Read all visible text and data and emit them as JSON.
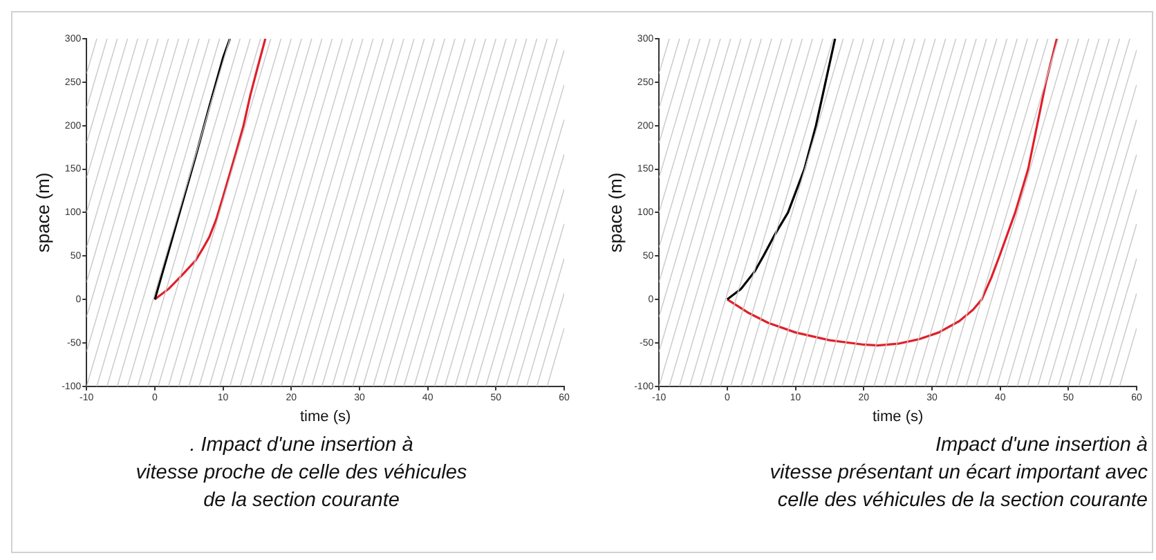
{
  "chart_data": [
    {
      "type": "line",
      "xlabel": "time (s)",
      "ylabel": "space (m)",
      "xlim": [
        -10,
        60
      ],
      "xticks": [
        -10,
        0,
        10,
        20,
        30,
        40,
        50,
        60
      ],
      "ylim": [
        -100,
        300
      ],
      "yticks": [
        -100,
        -50,
        0,
        50,
        100,
        150,
        200,
        250,
        300
      ],
      "grid": false,
      "legend": false,
      "annotations": [
        ". Impact d'une insertion à\nvitesse proche de celle des véhicules\nde la section courante"
      ],
      "series": [
        {
          "color": "#c8c8c8",
          "x": [
            -10,
            -8.5
          ],
          "values": [
            260,
            300
          ]
        },
        {
          "color": "#c8c8c8",
          "x": [
            -10,
            -7
          ],
          "values": [
            220,
            300
          ]
        },
        {
          "color": "#c8c8c8",
          "x": [
            -10,
            -5.5
          ],
          "values": [
            180,
            300
          ]
        },
        {
          "color": "#c8c8c8",
          "x": [
            -10,
            -4
          ],
          "values": [
            140,
            300
          ]
        },
        {
          "color": "#c8c8c8",
          "x": [
            -10,
            -2.5
          ],
          "values": [
            100,
            300
          ]
        },
        {
          "color": "#c8c8c8",
          "x": [
            -10,
            -1
          ],
          "values": [
            60,
            300
          ]
        },
        {
          "color": "#c8c8c8",
          "x": [
            -10,
            0.5
          ],
          "values": [
            20,
            300
          ]
        },
        {
          "color": "#c8c8c8",
          "x": [
            -10,
            2
          ],
          "values": [
            -20,
            300
          ]
        },
        {
          "color": "#c8c8c8",
          "x": [
            -10,
            3.5
          ],
          "values": [
            -60,
            300
          ]
        },
        {
          "color": "#c8c8c8",
          "x": [
            -10,
            5
          ],
          "values": [
            -100,
            300
          ]
        },
        {
          "color": "#c8c8c8",
          "x": [
            -8.5,
            6.5
          ],
          "values": [
            -100,
            300
          ]
        },
        {
          "color": "#c8c8c8",
          "x": [
            -7,
            8
          ],
          "values": [
            -100,
            300
          ]
        },
        {
          "color": "#c8c8c8",
          "x": [
            -5.5,
            9.5
          ],
          "values": [
            -100,
            300
          ]
        },
        {
          "color": "#c8c8c8",
          "x": [
            -4,
            11
          ],
          "values": [
            -100,
            300
          ]
        },
        {
          "color": "#c8c8c8",
          "x": [
            -2.5,
            12.5
          ],
          "values": [
            -100,
            300
          ]
        },
        {
          "color": "#c8c8c8",
          "x": [
            -1,
            14
          ],
          "values": [
            -100,
            300
          ]
        },
        {
          "color": "#c8c8c8",
          "x": [
            0.5,
            15.5
          ],
          "values": [
            -100,
            300
          ]
        },
        {
          "color": "#c8c8c8",
          "x": [
            2,
            17
          ],
          "values": [
            -100,
            300
          ]
        },
        {
          "color": "#c8c8c8",
          "x": [
            3.5,
            18.5
          ],
          "values": [
            -100,
            300
          ]
        },
        {
          "color": "#c8c8c8",
          "x": [
            5,
            20
          ],
          "values": [
            -100,
            300
          ]
        },
        {
          "color": "#c8c8c8",
          "x": [
            6.5,
            21.5
          ],
          "values": [
            -100,
            300
          ]
        },
        {
          "color": "#c8c8c8",
          "x": [
            8,
            23
          ],
          "values": [
            -100,
            300
          ]
        },
        {
          "color": "#c8c8c8",
          "x": [
            9.5,
            24.5
          ],
          "values": [
            -100,
            300
          ]
        },
        {
          "color": "#c8c8c8",
          "x": [
            11,
            26
          ],
          "values": [
            -100,
            300
          ]
        },
        {
          "color": "#c8c8c8",
          "x": [
            12.5,
            27.5
          ],
          "values": [
            -100,
            300
          ]
        },
        {
          "color": "#c8c8c8",
          "x": [
            14,
            29
          ],
          "values": [
            -100,
            300
          ]
        },
        {
          "color": "#c8c8c8",
          "x": [
            15.5,
            30.5
          ],
          "values": [
            -100,
            300
          ]
        },
        {
          "color": "#c8c8c8",
          "x": [
            17,
            32
          ],
          "values": [
            -100,
            300
          ]
        },
        {
          "color": "#c8c8c8",
          "x": [
            18.5,
            33.5
          ],
          "values": [
            -100,
            300
          ]
        },
        {
          "color": "#c8c8c8",
          "x": [
            20,
            35
          ],
          "values": [
            -100,
            300
          ]
        },
        {
          "color": "#c8c8c8",
          "x": [
            21.5,
            36.5
          ],
          "values": [
            -100,
            300
          ]
        },
        {
          "color": "#c8c8c8",
          "x": [
            23,
            38
          ],
          "values": [
            -100,
            300
          ]
        },
        {
          "color": "#c8c8c8",
          "x": [
            24.5,
            39.5
          ],
          "values": [
            -100,
            300
          ]
        },
        {
          "color": "#c8c8c8",
          "x": [
            26,
            41
          ],
          "values": [
            -100,
            300
          ]
        },
        {
          "color": "#c8c8c8",
          "x": [
            27.5,
            42.5
          ],
          "values": [
            -100,
            300
          ]
        },
        {
          "color": "#c8c8c8",
          "x": [
            29,
            44
          ],
          "values": [
            -100,
            300
          ]
        },
        {
          "color": "#c8c8c8",
          "x": [
            30.5,
            45.5
          ],
          "values": [
            -100,
            300
          ]
        },
        {
          "color": "#c8c8c8",
          "x": [
            32,
            47
          ],
          "values": [
            -100,
            300
          ]
        },
        {
          "color": "#c8c8c8",
          "x": [
            33.5,
            48.5
          ],
          "values": [
            -100,
            300
          ]
        },
        {
          "color": "#c8c8c8",
          "x": [
            35,
            50
          ],
          "values": [
            -100,
            300
          ]
        },
        {
          "color": "#c8c8c8",
          "x": [
            36.5,
            51.5
          ],
          "values": [
            -100,
            300
          ]
        },
        {
          "color": "#c8c8c8",
          "x": [
            38,
            53
          ],
          "values": [
            -100,
            300
          ]
        },
        {
          "color": "#c8c8c8",
          "x": [
            39.5,
            54.5
          ],
          "values": [
            -100,
            300
          ]
        },
        {
          "color": "#c8c8c8",
          "x": [
            41,
            56
          ],
          "values": [
            -100,
            300
          ]
        },
        {
          "color": "#c8c8c8",
          "x": [
            42.5,
            57.5
          ],
          "values": [
            -100,
            300
          ]
        },
        {
          "color": "#c8c8c8",
          "x": [
            44,
            59
          ],
          "values": [
            -100,
            300
          ]
        },
        {
          "color": "#c8c8c8",
          "x": [
            45.5,
            60
          ],
          "values": [
            -100,
            287
          ]
        },
        {
          "color": "#c8c8c8",
          "x": [
            47,
            60
          ],
          "values": [
            -100,
            247
          ]
        },
        {
          "color": "#c8c8c8",
          "x": [
            48.5,
            60
          ],
          "values": [
            -100,
            207
          ]
        },
        {
          "color": "#c8c8c8",
          "x": [
            50,
            60
          ],
          "values": [
            -100,
            167
          ]
        },
        {
          "color": "#c8c8c8",
          "x": [
            51.5,
            60
          ],
          "values": [
            -100,
            127
          ]
        },
        {
          "color": "#c8c8c8",
          "x": [
            53,
            60
          ],
          "values": [
            -100,
            87
          ]
        },
        {
          "color": "#c8c8c8",
          "x": [
            54.5,
            60
          ],
          "values": [
            -100,
            47
          ]
        },
        {
          "color": "#c8c8c8",
          "x": [
            56,
            60
          ],
          "values": [
            -100,
            7
          ]
        },
        {
          "color": "#c8c8c8",
          "x": [
            57.5,
            60
          ],
          "values": [
            -100,
            -33
          ]
        },
        {
          "color": "#000000",
          "x": [
            0,
            2,
            4,
            6,
            8,
            10,
            11
          ],
          "values": [
            0,
            55,
            110,
            165,
            222,
            278,
            300
          ]
        },
        {
          "color": "#e0202a",
          "x": [
            0,
            2,
            4,
            6,
            7,
            8,
            9,
            10,
            11,
            12,
            13,
            14,
            15,
            16.2
          ],
          "values": [
            0,
            12,
            28,
            45,
            58,
            72,
            92,
            118,
            145,
            172,
            200,
            235,
            265,
            300
          ]
        }
      ]
    },
    {
      "type": "line",
      "xlabel": "time (s)",
      "ylabel": "space (m)",
      "xlim": [
        -10,
        60
      ],
      "xticks": [
        -10,
        0,
        10,
        20,
        30,
        40,
        50,
        60
      ],
      "ylim": [
        -100,
        300
      ],
      "yticks": [
        -100,
        -50,
        0,
        50,
        100,
        150,
        200,
        250,
        300
      ],
      "grid": false,
      "legend": false,
      "annotations": [
        "Impact d'une insertion à\nvitesse présentant un écart important avec\ncelle des véhicules de la section courante"
      ],
      "series": [
        {
          "color": "#c8c8c8",
          "x": [
            -10,
            -8.5
          ],
          "values": [
            260,
            300
          ]
        },
        {
          "color": "#c8c8c8",
          "x": [
            -10,
            -7
          ],
          "values": [
            220,
            300
          ]
        },
        {
          "color": "#c8c8c8",
          "x": [
            -10,
            -5.5
          ],
          "values": [
            180,
            300
          ]
        },
        {
          "color": "#c8c8c8",
          "x": [
            -10,
            -4
          ],
          "values": [
            140,
            300
          ]
        },
        {
          "color": "#c8c8c8",
          "x": [
            -10,
            -2.5
          ],
          "values": [
            100,
            300
          ]
        },
        {
          "color": "#c8c8c8",
          "x": [
            -10,
            -1
          ],
          "values": [
            60,
            300
          ]
        },
        {
          "color": "#c8c8c8",
          "x": [
            -10,
            0.5
          ],
          "values": [
            20,
            300
          ]
        },
        {
          "color": "#c8c8c8",
          "x": [
            -10,
            2
          ],
          "values": [
            -20,
            300
          ]
        },
        {
          "color": "#c8c8c8",
          "x": [
            -10,
            3.5
          ],
          "values": [
            -60,
            300
          ]
        },
        {
          "color": "#c8c8c8",
          "x": [
            -10,
            5
          ],
          "values": [
            -100,
            300
          ]
        },
        {
          "color": "#c8c8c8",
          "x": [
            -8.5,
            6.5
          ],
          "values": [
            -100,
            300
          ]
        },
        {
          "color": "#c8c8c8",
          "x": [
            -7,
            8
          ],
          "values": [
            -100,
            300
          ]
        },
        {
          "color": "#c8c8c8",
          "x": [
            -5.5,
            9.5
          ],
          "values": [
            -100,
            300
          ]
        },
        {
          "color": "#c8c8c8",
          "x": [
            -4,
            11
          ],
          "values": [
            -100,
            300
          ]
        },
        {
          "color": "#c8c8c8",
          "x": [
            -2.5,
            12.5
          ],
          "values": [
            -100,
            300
          ]
        },
        {
          "color": "#c8c8c8",
          "x": [
            -1,
            14
          ],
          "values": [
            -100,
            300
          ]
        },
        {
          "color": "#c8c8c8",
          "x": [
            0.5,
            15.5
          ],
          "values": [
            -100,
            300
          ]
        },
        {
          "color": "#c8c8c8",
          "x": [
            2,
            17
          ],
          "values": [
            -100,
            300
          ]
        },
        {
          "color": "#c8c8c8",
          "x": [
            3.5,
            18.5
          ],
          "values": [
            -100,
            300
          ]
        },
        {
          "color": "#c8c8c8",
          "x": [
            5,
            20
          ],
          "values": [
            -100,
            300
          ]
        },
        {
          "color": "#c8c8c8",
          "x": [
            6.5,
            21.5
          ],
          "values": [
            -100,
            300
          ]
        },
        {
          "color": "#c8c8c8",
          "x": [
            8,
            23
          ],
          "values": [
            -100,
            300
          ]
        },
        {
          "color": "#c8c8c8",
          "x": [
            9.5,
            24.5
          ],
          "values": [
            -100,
            300
          ]
        },
        {
          "color": "#c8c8c8",
          "x": [
            11,
            26
          ],
          "values": [
            -100,
            300
          ]
        },
        {
          "color": "#c8c8c8",
          "x": [
            12.5,
            27.5
          ],
          "values": [
            -100,
            300
          ]
        },
        {
          "color": "#c8c8c8",
          "x": [
            14,
            29
          ],
          "values": [
            -100,
            300
          ]
        },
        {
          "color": "#c8c8c8",
          "x": [
            15.5,
            30.5
          ],
          "values": [
            -100,
            300
          ]
        },
        {
          "color": "#c8c8c8",
          "x": [
            17,
            32
          ],
          "values": [
            -100,
            300
          ]
        },
        {
          "color": "#c8c8c8",
          "x": [
            18.5,
            33.5
          ],
          "values": [
            -100,
            300
          ]
        },
        {
          "color": "#c8c8c8",
          "x": [
            20,
            35
          ],
          "values": [
            -100,
            300
          ]
        },
        {
          "color": "#c8c8c8",
          "x": [
            21.5,
            36.5
          ],
          "values": [
            -100,
            300
          ]
        },
        {
          "color": "#c8c8c8",
          "x": [
            23,
            38
          ],
          "values": [
            -100,
            300
          ]
        },
        {
          "color": "#c8c8c8",
          "x": [
            24.5,
            39.5
          ],
          "values": [
            -100,
            300
          ]
        },
        {
          "color": "#c8c8c8",
          "x": [
            26,
            41
          ],
          "values": [
            -100,
            300
          ]
        },
        {
          "color": "#c8c8c8",
          "x": [
            27.5,
            42.5
          ],
          "values": [
            -100,
            300
          ]
        },
        {
          "color": "#c8c8c8",
          "x": [
            29,
            44
          ],
          "values": [
            -100,
            300
          ]
        },
        {
          "color": "#c8c8c8",
          "x": [
            30.5,
            45.5
          ],
          "values": [
            -100,
            300
          ]
        },
        {
          "color": "#c8c8c8",
          "x": [
            32,
            47
          ],
          "values": [
            -100,
            300
          ]
        },
        {
          "color": "#c8c8c8",
          "x": [
            33.5,
            48.5
          ],
          "values": [
            -100,
            300
          ]
        },
        {
          "color": "#c8c8c8",
          "x": [
            35,
            50
          ],
          "values": [
            -100,
            300
          ]
        },
        {
          "color": "#c8c8c8",
          "x": [
            36.5,
            51.5
          ],
          "values": [
            -100,
            300
          ]
        },
        {
          "color": "#c8c8c8",
          "x": [
            38,
            53
          ],
          "values": [
            -100,
            300
          ]
        },
        {
          "color": "#c8c8c8",
          "x": [
            39.5,
            54.5
          ],
          "values": [
            -100,
            300
          ]
        },
        {
          "color": "#c8c8c8",
          "x": [
            41,
            56
          ],
          "values": [
            -100,
            300
          ]
        },
        {
          "color": "#c8c8c8",
          "x": [
            42.5,
            57.5
          ],
          "values": [
            -100,
            300
          ]
        },
        {
          "color": "#c8c8c8",
          "x": [
            44,
            59
          ],
          "values": [
            -100,
            300
          ]
        },
        {
          "color": "#c8c8c8",
          "x": [
            45.5,
            60
          ],
          "values": [
            -100,
            287
          ]
        },
        {
          "color": "#c8c8c8",
          "x": [
            47,
            60
          ],
          "values": [
            -100,
            247
          ]
        },
        {
          "color": "#c8c8c8",
          "x": [
            48.5,
            60
          ],
          "values": [
            -100,
            207
          ]
        },
        {
          "color": "#c8c8c8",
          "x": [
            50,
            60
          ],
          "values": [
            -100,
            167
          ]
        },
        {
          "color": "#c8c8c8",
          "x": [
            51.5,
            60
          ],
          "values": [
            -100,
            127
          ]
        },
        {
          "color": "#c8c8c8",
          "x": [
            53,
            60
          ],
          "values": [
            -100,
            87
          ]
        },
        {
          "color": "#c8c8c8",
          "x": [
            54.5,
            60
          ],
          "values": [
            -100,
            47
          ]
        },
        {
          "color": "#c8c8c8",
          "x": [
            56,
            60
          ],
          "values": [
            -100,
            7
          ]
        },
        {
          "color": "#c8c8c8",
          "x": [
            57.5,
            60
          ],
          "values": [
            -100,
            -33
          ]
        },
        {
          "color": "#000000",
          "x": [
            0,
            2,
            4,
            5.3,
            7,
            8.9,
            11.3,
            13,
            14.4,
            15.8
          ],
          "values": [
            0,
            12,
            32,
            50,
            75,
            100,
            150,
            200,
            250,
            300
          ]
        },
        {
          "color": "#e0202a",
          "x": [
            0,
            3,
            6,
            10,
            15,
            20,
            22,
            25,
            28,
            31,
            34,
            36,
            37.3,
            38.7,
            39.9,
            42.2,
            44.1,
            45.4,
            46.7,
            48.3
          ],
          "values": [
            0,
            -15,
            -27,
            -38,
            -47,
            -52,
            -53,
            -51,
            -46,
            -38,
            -25,
            -12,
            0,
            25,
            50,
            100,
            150,
            200,
            250,
            300
          ]
        }
      ]
    }
  ]
}
